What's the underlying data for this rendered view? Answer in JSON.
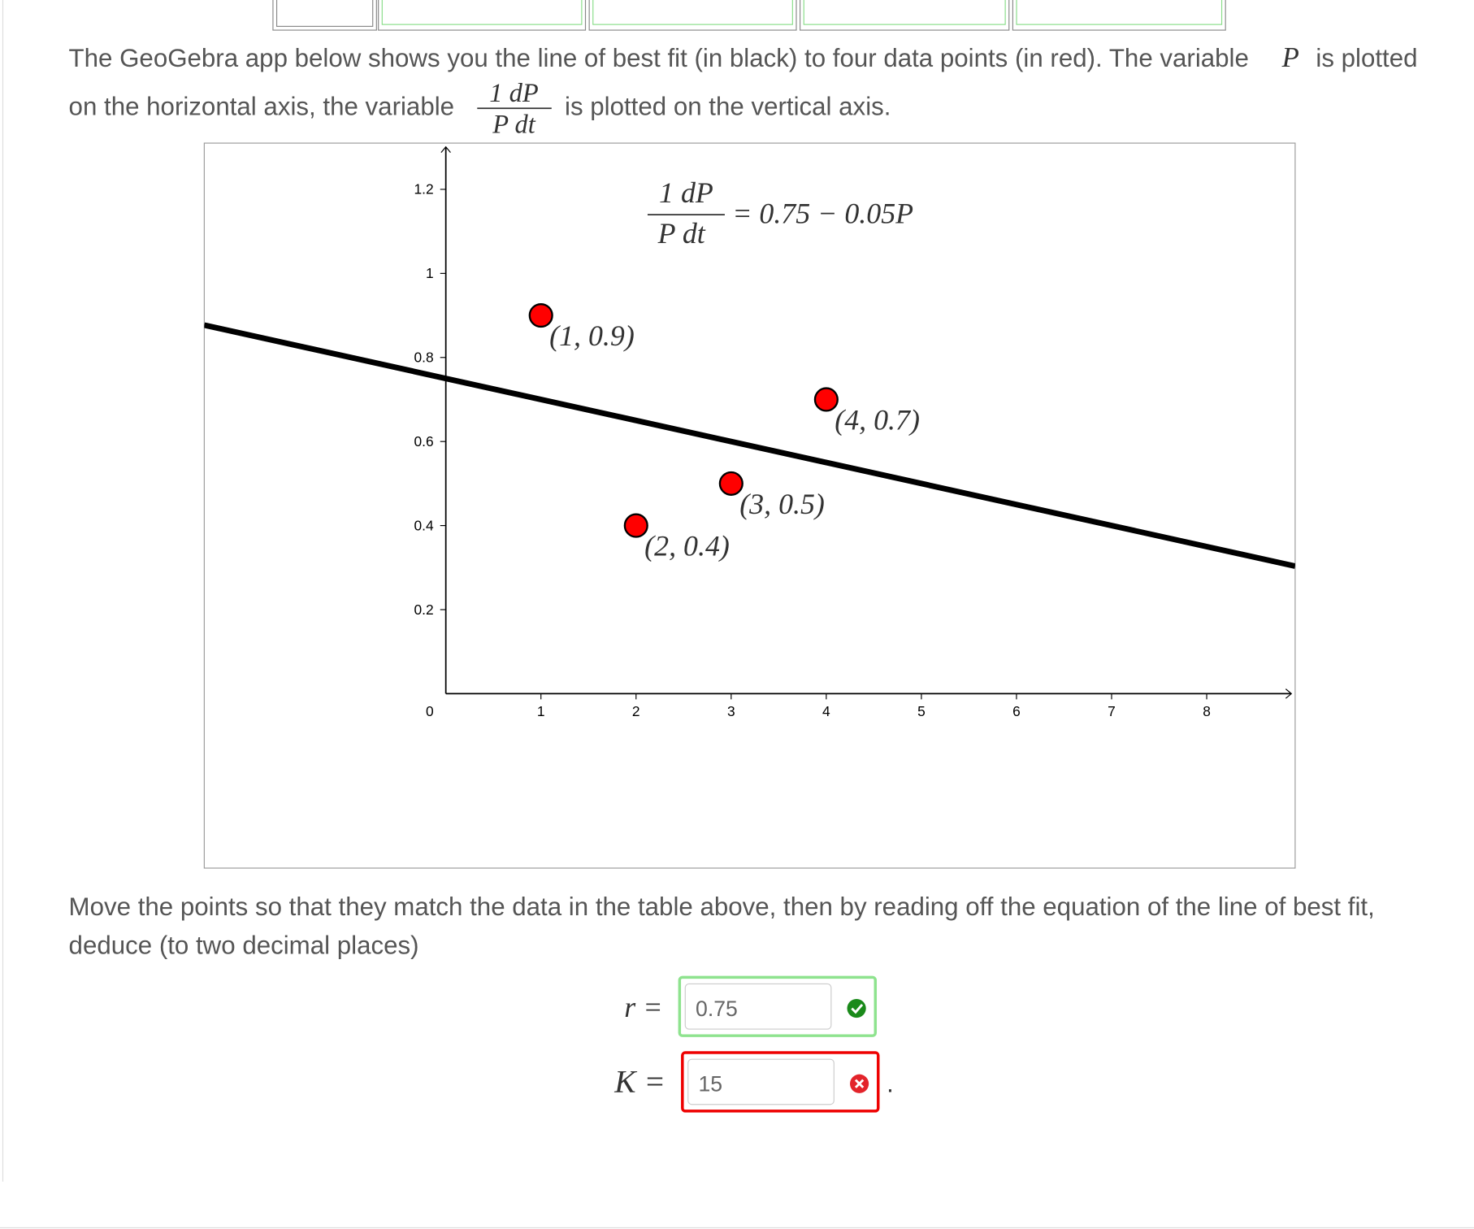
{
  "intro": {
    "line1": "The GeoGebra app below shows you the line of best fit (in black) to four data points (in red). The variable",
    "var_p": "P",
    "line1_end": "is plotted",
    "line2": "on the horizontal axis, the variable",
    "frac_num": "1 dP",
    "frac_den": "P dt",
    "line2_end": "is plotted on the vertical axis."
  },
  "chart_data": {
    "type": "scatter",
    "x": [
      1,
      2,
      3,
      4
    ],
    "values": [
      0.9,
      0.4,
      0.5,
      0.7
    ],
    "point_labels": [
      "(1, 0.9)",
      "(2, 0.4)",
      "(3, 0.5)",
      "(4, 0.7)"
    ],
    "color": "#ff0000",
    "fit_line": {
      "intercept": 0.75,
      "slope": -0.05,
      "color": "#000000"
    },
    "equation": {
      "num": "1 dP",
      "den": "P dt",
      "rhs": "= 0.75 − 0.05P"
    },
    "xlim": [
      -2.54,
      8.93
    ],
    "ylim": [
      -0.415,
      1.31
    ],
    "xticks": [
      1,
      2,
      3,
      4,
      5,
      6,
      7,
      8
    ],
    "yticks": [
      0,
      0.2,
      0.4,
      0.6,
      0.8,
      1,
      1.2
    ]
  },
  "question": {
    "line1": "Move the points so that they match the data in the table above, then by reading off the equation of the line of best fit,",
    "line2": "deduce (to two decimal places)"
  },
  "answers": [
    {
      "label": "r =",
      "value": "0.75",
      "status": "correct"
    },
    {
      "label": "K =",
      "value": "15",
      "status": "incorrect"
    }
  ],
  "period": "."
}
